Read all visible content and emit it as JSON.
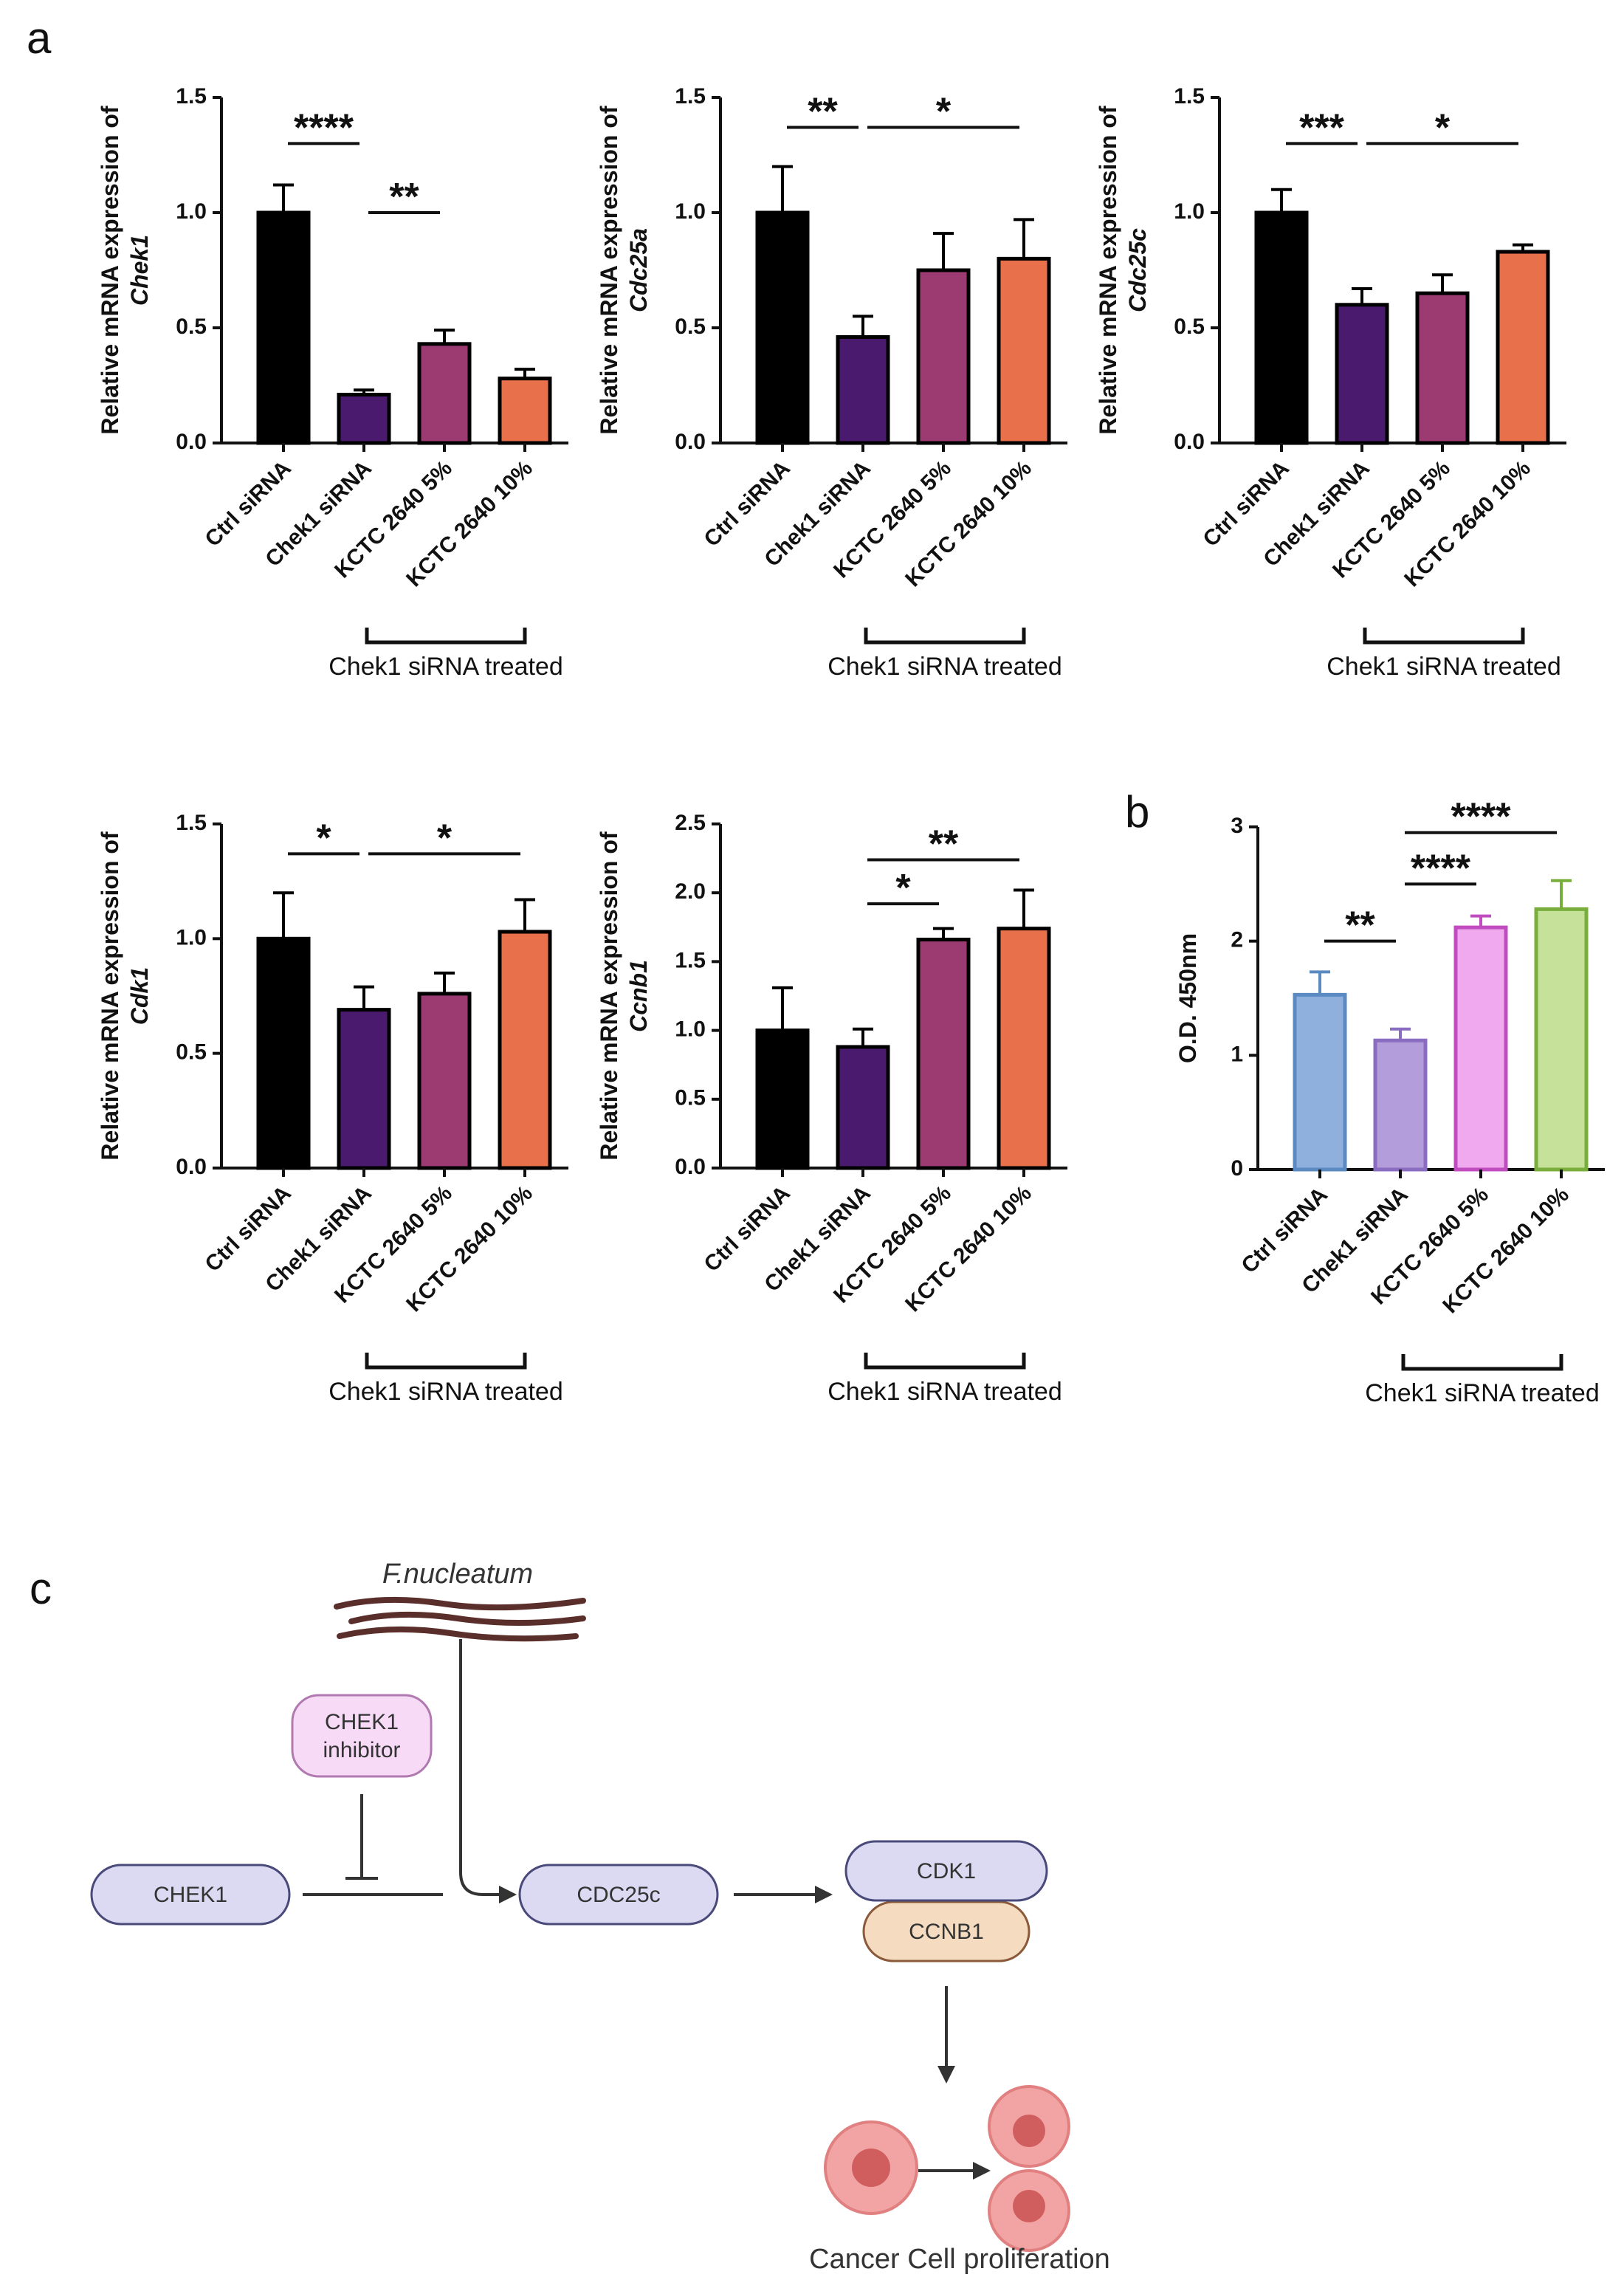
{
  "panel_labels": [
    "a",
    "b",
    "c"
  ],
  "chart_data": [
    {
      "type": "bar",
      "ylabel": "Relative mRNA expression of",
      "ylabel_gene": "Chek1",
      "categories": [
        "Ctrl siRNA",
        "Chek1 siRNA",
        "KCTC 2640 5%",
        "KCTC 2640 10%"
      ],
      "values": [
        1.0,
        0.21,
        0.43,
        0.28
      ],
      "errors": [
        0.12,
        0.02,
        0.06,
        0.04
      ],
      "colors": [
        "#000000",
        "#4a1a6e",
        "#9c3a72",
        "#e8704a"
      ],
      "edge_color": "#000000",
      "ylim": [
        0,
        1.5
      ],
      "yticks": [
        {
          "value": 0,
          "label": "0.0"
        },
        {
          "value": 0.5,
          "label": "0.5"
        },
        {
          "value": 1,
          "label": "1.0"
        },
        {
          "value": 1.5,
          "label": "1.5"
        }
      ],
      "significance": [
        {
          "label": "****",
          "between": [
            "Ctrl siRNA",
            "Chek1 siRNA"
          ],
          "y": 1.3
        },
        {
          "label": "**",
          "between": [
            "Chek1 siRNA",
            "KCTC 2640 5%"
          ],
          "y": 1.0
        }
      ],
      "group_label": "Chek1 siRNA treated"
    },
    {
      "type": "bar",
      "ylabel": "Relative mRNA expression of",
      "ylabel_gene": "Cdc25a",
      "categories": [
        "Ctrl siRNA",
        "Chek1 siRNA",
        "KCTC 2640 5%",
        "KCTC 2640 10%"
      ],
      "values": [
        1.0,
        0.46,
        0.75,
        0.8
      ],
      "errors": [
        0.2,
        0.09,
        0.16,
        0.17
      ],
      "colors": [
        "#000000",
        "#4a1a6e",
        "#9c3a72",
        "#e8704a"
      ],
      "edge_color": "#000000",
      "ylim": [
        0,
        1.5
      ],
      "yticks": [
        {
          "value": 0,
          "label": "0.0"
        },
        {
          "value": 0.5,
          "label": "0.5"
        },
        {
          "value": 1,
          "label": "1.0"
        },
        {
          "value": 1.5,
          "label": "1.5"
        }
      ],
      "significance": [
        {
          "label": "**",
          "between": [
            "Ctrl siRNA",
            "Chek1 siRNA"
          ],
          "y": 1.37
        },
        {
          "label": "*",
          "between": [
            "Chek1 siRNA",
            "KCTC 2640 10%"
          ],
          "y": 1.37
        }
      ],
      "group_label": "Chek1 siRNA treated"
    },
    {
      "type": "bar",
      "ylabel": "Relative mRNA expression of",
      "ylabel_gene": "Cdc25c",
      "categories": [
        "Ctrl siRNA",
        "Chek1 siRNA",
        "KCTC 2640 5%",
        "KCTC 2640 10%"
      ],
      "values": [
        1.0,
        0.6,
        0.65,
        0.83
      ],
      "errors": [
        0.1,
        0.07,
        0.08,
        0.03
      ],
      "colors": [
        "#000000",
        "#4a1a6e",
        "#9c3a72",
        "#e8704a"
      ],
      "edge_color": "#000000",
      "ylim": [
        0,
        1.5
      ],
      "yticks": [
        {
          "value": 0,
          "label": "0.0"
        },
        {
          "value": 0.5,
          "label": "0.5"
        },
        {
          "value": 1,
          "label": "1.0"
        },
        {
          "value": 1.5,
          "label": "1.5"
        }
      ],
      "significance": [
        {
          "label": "***",
          "between": [
            "Ctrl siRNA",
            "Chek1 siRNA"
          ],
          "y": 1.3
        },
        {
          "label": "*",
          "between": [
            "Chek1 siRNA",
            "KCTC 2640 10%"
          ],
          "y": 1.3
        }
      ],
      "group_label": "Chek1 siRNA treated"
    },
    {
      "type": "bar",
      "ylabel": "Relative mRNA expression of",
      "ylabel_gene": "Cdk1",
      "categories": [
        "Ctrl siRNA",
        "Chek1 siRNA",
        "KCTC 2640 5%",
        "KCTC 2640 10%"
      ],
      "values": [
        1.0,
        0.69,
        0.76,
        1.03
      ],
      "errors": [
        0.2,
        0.1,
        0.09,
        0.14
      ],
      "colors": [
        "#000000",
        "#4a1a6e",
        "#9c3a72",
        "#e8704a"
      ],
      "edge_color": "#000000",
      "ylim": [
        0,
        1.5
      ],
      "yticks": [
        {
          "value": 0,
          "label": "0.0"
        },
        {
          "value": 0.5,
          "label": "0.5"
        },
        {
          "value": 1,
          "label": "1.0"
        },
        {
          "value": 1.5,
          "label": "1.5"
        }
      ],
      "significance": [
        {
          "label": "*",
          "between": [
            "Ctrl siRNA",
            "Chek1 siRNA"
          ],
          "y": 1.37
        },
        {
          "label": "*",
          "between": [
            "Chek1 siRNA",
            "KCTC 2640 10%"
          ],
          "y": 1.37
        }
      ],
      "group_label": "Chek1 siRNA treated"
    },
    {
      "type": "bar",
      "ylabel": "Relative mRNA expression of",
      "ylabel_gene": "Ccnb1",
      "categories": [
        "Ctrl siRNA",
        "Chek1 siRNA",
        "KCTC 2640 5%",
        "KCTC 2640 10%"
      ],
      "values": [
        1.0,
        0.88,
        1.66,
        1.74
      ],
      "errors": [
        0.31,
        0.13,
        0.08,
        0.28
      ],
      "colors": [
        "#000000",
        "#4a1a6e",
        "#9c3a72",
        "#e8704a"
      ],
      "edge_color": "#000000",
      "ylim": [
        0,
        2.5
      ],
      "yticks": [
        {
          "value": 0,
          "label": "0.0"
        },
        {
          "value": 0.5,
          "label": "0.5"
        },
        {
          "value": 1,
          "label": "1.0"
        },
        {
          "value": 1.5,
          "label": "1.5"
        },
        {
          "value": 2,
          "label": "2.0"
        },
        {
          "value": 2.5,
          "label": "2.5"
        }
      ],
      "significance": [
        {
          "label": "*",
          "between": [
            "Chek1 siRNA",
            "KCTC 2640 5%"
          ],
          "y": 1.92
        },
        {
          "label": "**",
          "between": [
            "Chek1 siRNA",
            "KCTC 2640 10%"
          ],
          "y": 2.24
        }
      ],
      "group_label": "Chek1 siRNA treated"
    },
    {
      "type": "bar",
      "ylabel": "O.D. 450nm",
      "categories": [
        "Ctrl siRNA",
        "Chek1 siRNA",
        "KCTC 2640 5%",
        "KCTC 2640 10%"
      ],
      "values": [
        1.53,
        1.13,
        2.12,
        2.28
      ],
      "errors": [
        0.2,
        0.1,
        0.1,
        0.25
      ],
      "colors": [
        "#8fb0dc",
        "#b49ddb",
        "#f0a8ee",
        "#c6e29a"
      ],
      "edge_colors": [
        "#5b8ac2",
        "#8a6cc0",
        "#c04cc0",
        "#7aae3c"
      ],
      "ylim": [
        0,
        3
      ],
      "yticks": [
        0,
        1,
        2,
        3
      ],
      "significance": [
        {
          "label": "**",
          "between": [
            "Ctrl siRNA",
            "Chek1 siRNA"
          ],
          "y": 2.0
        },
        {
          "label": "****",
          "between": [
            "Chek1 siRNA",
            "KCTC 2640 5%"
          ],
          "y": 2.5
        },
        {
          "label": "****",
          "between": [
            "Chek1 siRNA",
            "KCTC 2640 10%"
          ],
          "y": 2.95
        }
      ],
      "group_label": "Chek1 siRNA treated"
    }
  ],
  "diagram": {
    "source": "F.nucleatum",
    "inhibitor": [
      "CHEK1",
      "inhibitor"
    ],
    "nodes": [
      "CHEK1",
      "CDC25c",
      "CDK1",
      "CCNB1"
    ],
    "outcome": "Cancer Cell proliferation"
  }
}
